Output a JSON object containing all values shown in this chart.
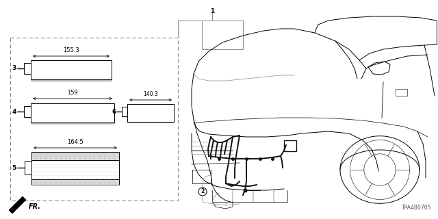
{
  "bg_color": "#ffffff",
  "part_number": "TPA4B0705",
  "fig_width": 6.4,
  "fig_height": 3.2,
  "dpi": 100,
  "line_color": "#000000",
  "gray_color": "#888888",
  "dark_gray": "#555555",
  "harness_color": "#111111"
}
